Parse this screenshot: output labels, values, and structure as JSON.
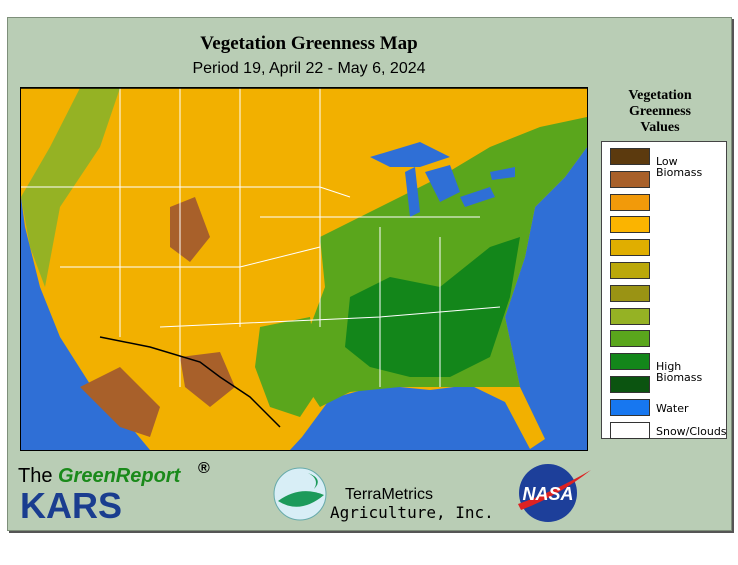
{
  "header": {
    "title": "Vegetation Greenness Map",
    "subtitle": "Period 19, April 22 - May 6, 2024"
  },
  "legend": {
    "title": "Vegetation Greenness Values",
    "items": [
      {
        "color": "#5c3a0e",
        "label": "Low Biomass"
      },
      {
        "color": "#a8602a"
      },
      {
        "color": "#f29a0a"
      },
      {
        "color": "#fbb400"
      },
      {
        "color": "#e0ae00"
      },
      {
        "color": "#bba80a"
      },
      {
        "color": "#9a9314"
      },
      {
        "color": "#95b224"
      },
      {
        "color": "#5aa61c"
      },
      {
        "color": "#13861a",
        "label": "High Biomass"
      },
      {
        "color": "#0b5410"
      },
      {
        "color": "#1777f0",
        "label": "Water"
      },
      {
        "color": "#ffffff",
        "label": "Snow/Clouds"
      }
    ]
  },
  "footer": {
    "left": {
      "prefix": "The",
      "brand": "GreenReport",
      "mark": "®",
      "name": "KARS"
    },
    "center": {
      "line1": "TerraMetrics",
      "line2": "Agriculture, Inc."
    },
    "right": {
      "name": "NASA"
    }
  }
}
